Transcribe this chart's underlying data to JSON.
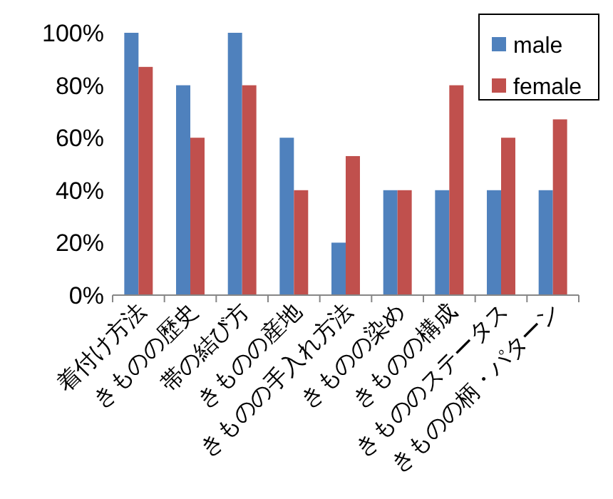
{
  "chart_data": {
    "type": "bar",
    "categories": [
      "着付け方法",
      "きものの歴史",
      "帯の結び方",
      "きものの産地",
      "きものの手入れ方法",
      "きものの染め",
      "きものの構成",
      "きもののステータス",
      "きものの柄・パターン"
    ],
    "series": [
      {
        "name": "male",
        "color": "#4f81bd",
        "values": [
          100,
          80,
          100,
          60,
          20,
          40,
          40,
          40,
          40
        ]
      },
      {
        "name": "female",
        "color": "#c0504d",
        "values": [
          87,
          60,
          80,
          40,
          53,
          40,
          80,
          60,
          67
        ]
      }
    ],
    "ylim": [
      0,
      100
    ],
    "yticks": [
      {
        "value": 0,
        "label": "0%"
      },
      {
        "value": 20,
        "label": "20%"
      },
      {
        "value": 40,
        "label": "40%"
      },
      {
        "value": 60,
        "label": "60%"
      },
      {
        "value": 80,
        "label": "80%"
      },
      {
        "value": 100,
        "label": "100%"
      }
    ],
    "grid": false,
    "legend": "top right"
  }
}
